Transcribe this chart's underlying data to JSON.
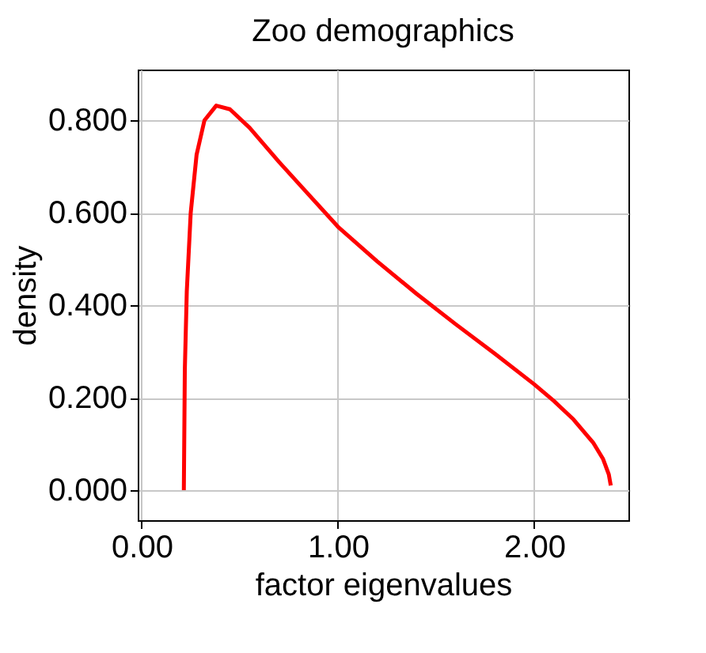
{
  "chart_data": {
    "type": "line",
    "title": "Zoo demographics",
    "xlabel": "factor eigenvalues",
    "ylabel": "density",
    "x": [
      0.215,
      0.22,
      0.23,
      0.25,
      0.28,
      0.32,
      0.38,
      0.45,
      0.55,
      0.7,
      0.85,
      1.0,
      1.2,
      1.4,
      1.6,
      1.8,
      2.0,
      2.1,
      2.2,
      2.3,
      2.35,
      2.38,
      2.39
    ],
    "series": [
      {
        "color": "#ff0000",
        "values": [
          0.0,
          0.26,
          0.43,
          0.6,
          0.726,
          0.8,
          0.832,
          0.824,
          0.784,
          0.71,
          0.64,
          0.57,
          0.495,
          0.425,
          0.359,
          0.295,
          0.229,
          0.193,
          0.153,
          0.103,
          0.068,
          0.034,
          0.01
        ]
      }
    ],
    "xlim": [
      -0.02,
      2.48
    ],
    "ylim": [
      -0.065,
      0.91
    ],
    "xticks": [
      {
        "value": 0,
        "label": "0.00"
      },
      {
        "value": 1,
        "label": "1.00"
      },
      {
        "value": 2,
        "label": "2.00"
      }
    ],
    "yticks": [
      {
        "value": 0,
        "label": "0.000"
      },
      {
        "value": 0.2,
        "label": "0.200"
      },
      {
        "value": 0.4,
        "label": "0.400"
      },
      {
        "value": 0.6,
        "label": "0.600"
      },
      {
        "value": 0.8,
        "label": "0.800"
      }
    ],
    "grid": true,
    "marker": "none",
    "line_style": "solid"
  }
}
